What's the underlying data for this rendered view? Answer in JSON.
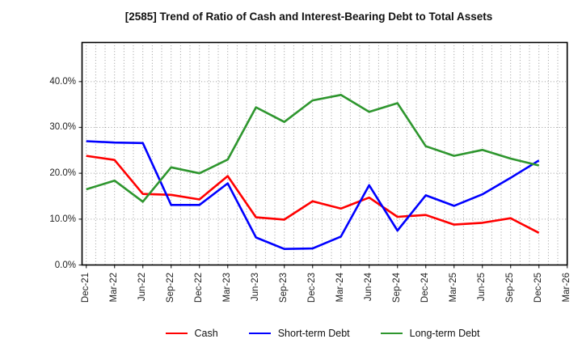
{
  "title": "[2585]  Trend of Ratio of Cash and Interest-Bearing Debt to Total Assets",
  "chart_data": {
    "type": "line",
    "x_labels": [
      "Dec-21",
      "Mar-22",
      "Jun-22",
      "Sep-22",
      "Dec-22",
      "Mar-23",
      "Jun-23",
      "Sep-23",
      "Dec-23",
      "Mar-24",
      "Jun-24",
      "Sep-24",
      "Dec-24",
      "Mar-25",
      "Jun-25",
      "Sep-25",
      "Dec-25",
      "Mar-26"
    ],
    "y_ticks": [
      {
        "label": "0.0%",
        "value": 0
      },
      {
        "label": "10.0%",
        "value": 10
      },
      {
        "label": "20.0%",
        "value": 20
      },
      {
        "label": "30.0%",
        "value": 30
      },
      {
        "label": "40.0%",
        "value": 40
      }
    ],
    "ylim": [
      0,
      48.6
    ],
    "grid": "dotted gray; vertical gridlines monthly (3 per quarter), horizontal at each 10%",
    "legend_position": "bottom",
    "series": [
      {
        "name": "Cash",
        "color": "#ff0000",
        "values": [
          23.8,
          22.9,
          15.5,
          15.3,
          14.3,
          19.4,
          10.4,
          9.9,
          13.9,
          12.3,
          14.7,
          10.5,
          10.9,
          8.8,
          9.2,
          10.2,
          7.0,
          null
        ]
      },
      {
        "name": "Short-term Debt",
        "color": "#0000ff",
        "values": [
          27.0,
          26.7,
          26.6,
          13.1,
          13.1,
          17.8,
          6.0,
          3.5,
          3.6,
          6.2,
          17.4,
          7.5,
          15.2,
          12.9,
          15.4,
          19.0,
          22.8,
          null
        ]
      },
      {
        "name": "Long-term Debt",
        "color": "#2e962e",
        "values": [
          16.5,
          18.4,
          13.8,
          21.3,
          20.0,
          23.0,
          34.4,
          31.2,
          35.9,
          37.1,
          33.4,
          35.3,
          25.9,
          23.8,
          25.1,
          23.2,
          21.7,
          null
        ]
      }
    ]
  }
}
